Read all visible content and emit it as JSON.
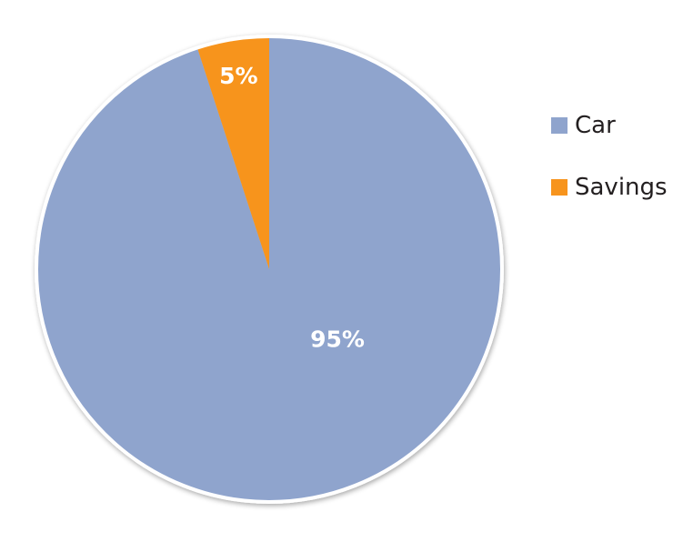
{
  "chart_data": {
    "type": "pie",
    "title": "",
    "slices": [
      {
        "label": "Car",
        "value": 95,
        "display": "95%",
        "color": "#8fa4cd"
      },
      {
        "label": "Savings",
        "value": 5,
        "display": "5%",
        "color": "#f7941d"
      }
    ],
    "start_angle": "12 o'clock",
    "direction": "counter-clockwise from Car",
    "border_color": "#ffffff",
    "legend": {
      "placement": "right",
      "items": [
        {
          "label": "Car",
          "color": "#8fa4cd"
        },
        {
          "label": "Savings",
          "color": "#f7941d"
        }
      ]
    }
  }
}
